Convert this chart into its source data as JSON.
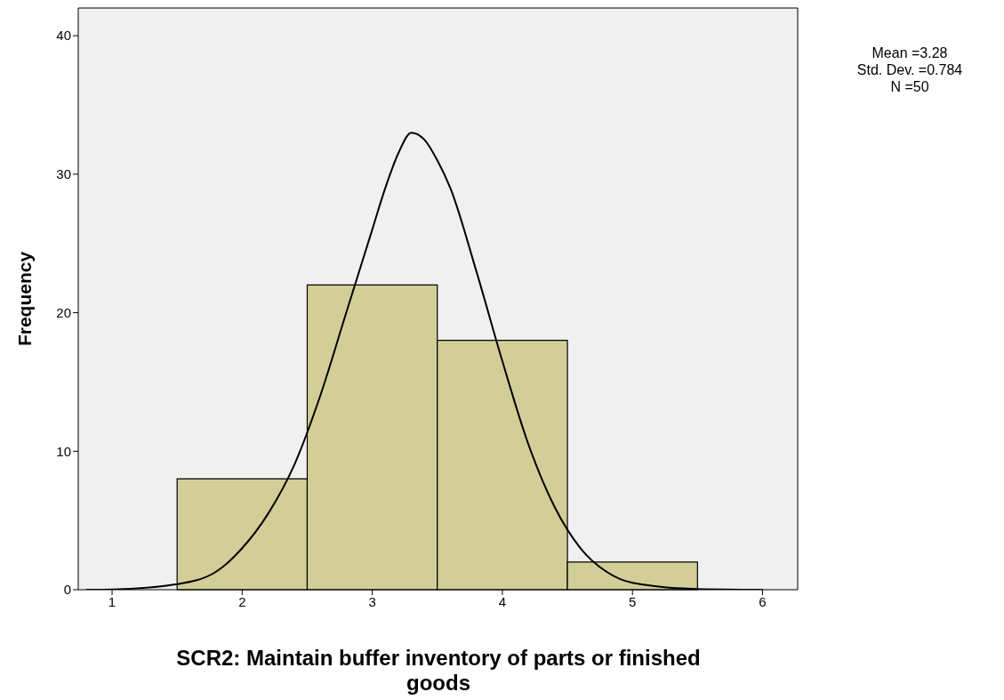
{
  "chart_data": {
    "type": "histogram",
    "xlabel": "SCR2: Maintain buffer inventory of parts or finished goods",
    "ylabel": "Frequency",
    "annotations": [
      "Mean =3.28\nStd. Dev. =0.784\nN =50"
    ],
    "bins": [
      1.5,
      2.5,
      3.5,
      4.5,
      5.5
    ],
    "values": [
      8,
      22,
      18,
      2
    ],
    "color": "#d3ce97",
    "series": [
      {
        "type": "line",
        "color": "#000000",
        "x": [
          0.8,
          1.0,
          1.5,
          1.8,
          2.0,
          2.2,
          2.4,
          2.6,
          2.8,
          3.0,
          3.1,
          3.2,
          3.3,
          3.4,
          3.5,
          3.6,
          3.8,
          4.0,
          4.2,
          4.4,
          4.6,
          4.8,
          5.0,
          5.5,
          6.0
        ],
        "values": [
          0,
          0.02,
          0.4,
          1.3,
          3,
          5.5,
          9,
          14,
          20,
          26,
          29,
          31.5,
          33,
          32.5,
          31,
          29,
          23,
          16.5,
          10.5,
          6,
          3,
          1.3,
          0.5,
          0.05,
          0
        ]
      }
    ],
    "xlim": [
      0.74,
      6.27
    ],
    "xticks": [
      1,
      2,
      3,
      4,
      5,
      6
    ],
    "ylim": [
      0,
      42
    ],
    "yticks": [
      0,
      10,
      20,
      30,
      40
    ],
    "grid": false
  }
}
